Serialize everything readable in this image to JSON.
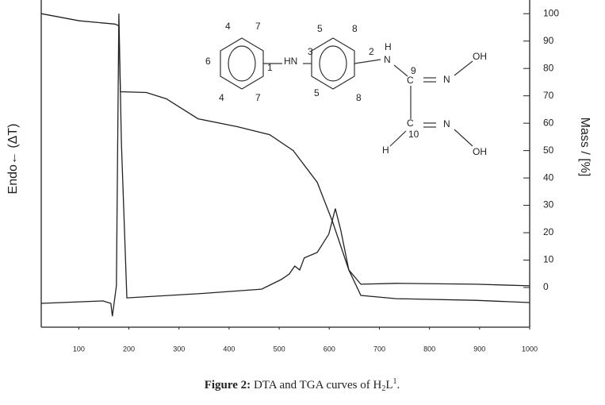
{
  "chart_data": {
    "type": "line",
    "y_label": "Endo← (ΔT)",
    "y2_label": "Mass / [%]",
    "caption": [
      "Figure 2:",
      " DTA and TGA curves of H",
      "2",
      "L",
      "1",
      "."
    ],
    "xlim": [
      25,
      1000
    ],
    "xticks": [
      100,
      200,
      300,
      400,
      500,
      600,
      700,
      800,
      900,
      1000
    ],
    "y2lim": [
      -14.5,
      105
    ],
    "y2ticks": [
      100,
      90,
      80,
      70,
      60,
      50,
      40,
      30,
      20,
      10,
      0
    ],
    "series": [
      {
        "name": "TGA",
        "color": "#222222",
        "axis": "y2",
        "x": [
          25,
          101,
          172,
          180,
          183,
          235,
          275,
          338,
          417,
          481,
          528,
          576,
          607,
          639,
          663,
          734,
          892,
          1000
        ],
        "values": [
          100,
          97.4,
          96.2,
          95.6,
          71.5,
          71.2,
          68.9,
          61.6,
          58.7,
          55.8,
          50,
          38.4,
          23.8,
          6.4,
          1.2,
          1.5,
          1.2,
          0.6
        ]
      },
      {
        "name": "DTA",
        "color": "#222222",
        "axis": "y2",
        "x": [
          25,
          148,
          164,
          167,
          175,
          180,
          185,
          196,
          338,
          465,
          504,
          520,
          531,
          541,
          550,
          576,
          599,
          612,
          623,
          639,
          663,
          734,
          892,
          1000
        ],
        "values": [
          -5.8,
          -4.9,
          -5.8,
          -10.5,
          0.6,
          100,
          52.9,
          -3.8,
          -2.3,
          -0.6,
          2.9,
          4.9,
          7.8,
          6.4,
          10.8,
          12.8,
          19.5,
          28.8,
          20.9,
          6.4,
          -2.9,
          -4.1,
          -4.7,
          -5.5
        ]
      }
    ],
    "structure_labels": [
      "4",
      "7",
      "6",
      "1",
      "4",
      "7",
      "HN",
      "3",
      "5",
      "8",
      "5",
      "8",
      "2",
      "H",
      "N",
      "9",
      "C",
      "N",
      "OH",
      "C",
      "10",
      "N",
      "OH",
      "H"
    ]
  }
}
